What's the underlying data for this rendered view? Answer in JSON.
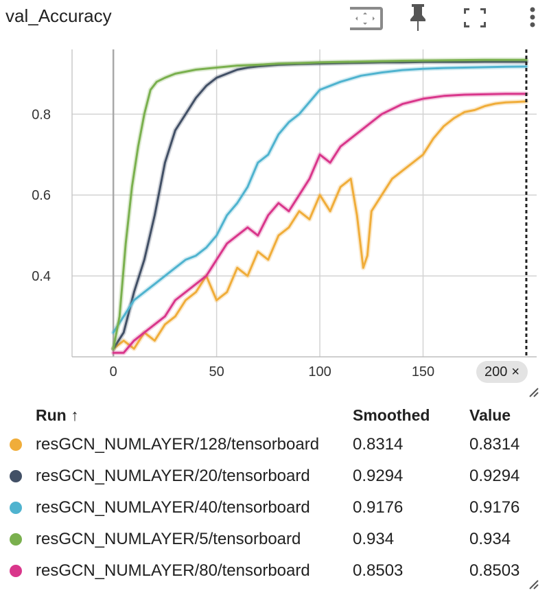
{
  "card": {
    "title": "val_Accuracy",
    "toolbar": {
      "fit_domain": "fit-to-data-icon",
      "pin": "pin-icon",
      "fullscreen": "fullscreen-icon",
      "more": "more-vert-icon"
    },
    "step_badge": {
      "label": "200",
      "close_glyph": "×"
    }
  },
  "table": {
    "headers": {
      "run": "Run ↑",
      "smoothed": "Smoothed",
      "value": "Value"
    },
    "rows": [
      {
        "run": "resGCN_NUMLAYER/128/tensorboard",
        "smoothed": "0.8314",
        "value": "0.8314",
        "color": "#f0ad3a"
      },
      {
        "run": "resGCN_NUMLAYER/20/tensorboard",
        "smoothed": "0.9294",
        "value": "0.9294",
        "color": "#425066"
      },
      {
        "run": "resGCN_NUMLAYER/40/tensorboard",
        "smoothed": "0.9176",
        "value": "0.9176",
        "color": "#4fb3cf"
      },
      {
        "run": "resGCN_NUMLAYER/5/tensorboard",
        "smoothed": "0.934",
        "value": "0.934",
        "color": "#7ab04e"
      },
      {
        "run": "resGCN_NUMLAYER/80/tensorboard",
        "smoothed": "0.8503",
        "value": "0.8503",
        "color": "#d9368b"
      }
    ]
  },
  "chart_data": {
    "type": "line",
    "title": "val_Accuracy",
    "xlabel": "",
    "ylabel": "",
    "xlim": [
      -20,
      205
    ],
    "ylim": [
      0.2,
      0.96
    ],
    "x_ticks": [
      0,
      50,
      100,
      150
    ],
    "y_ticks": [
      0.4,
      0.6,
      0.8
    ],
    "grid": true,
    "step_marker": 200,
    "series": [
      {
        "name": "resGCN_NUMLAYER/128/tensorboard",
        "color": "#f0ad3a",
        "x": [
          0,
          5,
          10,
          15,
          20,
          25,
          30,
          35,
          40,
          45,
          50,
          55,
          60,
          65,
          70,
          75,
          80,
          85,
          90,
          95,
          100,
          105,
          110,
          115,
          118,
          121,
          123,
          125,
          130,
          135,
          140,
          145,
          150,
          155,
          160,
          165,
          170,
          175,
          180,
          185,
          190,
          195,
          200
        ],
        "y": [
          0.22,
          0.24,
          0.22,
          0.26,
          0.24,
          0.28,
          0.3,
          0.34,
          0.36,
          0.4,
          0.34,
          0.36,
          0.42,
          0.4,
          0.46,
          0.44,
          0.5,
          0.52,
          0.56,
          0.54,
          0.6,
          0.56,
          0.62,
          0.64,
          0.55,
          0.42,
          0.45,
          0.56,
          0.6,
          0.64,
          0.66,
          0.68,
          0.7,
          0.74,
          0.77,
          0.79,
          0.805,
          0.81,
          0.82,
          0.826,
          0.829,
          0.83,
          0.8314
        ]
      },
      {
        "name": "resGCN_NUMLAYER/20/tensorboard",
        "color": "#425066",
        "x": [
          0,
          5,
          10,
          15,
          20,
          25,
          30,
          35,
          40,
          45,
          50,
          55,
          60,
          65,
          70,
          80,
          90,
          100,
          110,
          120,
          130,
          140,
          150,
          160,
          170,
          180,
          190,
          200
        ],
        "y": [
          0.22,
          0.26,
          0.36,
          0.44,
          0.55,
          0.68,
          0.76,
          0.8,
          0.84,
          0.87,
          0.89,
          0.9,
          0.91,
          0.915,
          0.918,
          0.922,
          0.924,
          0.925,
          0.926,
          0.927,
          0.928,
          0.928,
          0.929,
          0.929,
          0.929,
          0.9294,
          0.9294,
          0.9294
        ]
      },
      {
        "name": "resGCN_NUMLAYER/40/tensorboard",
        "color": "#4fb3cf",
        "x": [
          0,
          5,
          10,
          15,
          20,
          25,
          30,
          35,
          40,
          45,
          50,
          55,
          60,
          65,
          70,
          75,
          80,
          85,
          90,
          95,
          100,
          110,
          120,
          130,
          140,
          150,
          160,
          170,
          180,
          190,
          200
        ],
        "y": [
          0.26,
          0.3,
          0.34,
          0.36,
          0.38,
          0.4,
          0.42,
          0.44,
          0.45,
          0.47,
          0.5,
          0.55,
          0.58,
          0.62,
          0.68,
          0.7,
          0.75,
          0.78,
          0.8,
          0.83,
          0.86,
          0.88,
          0.895,
          0.903,
          0.909,
          0.912,
          0.914,
          0.915,
          0.916,
          0.917,
          0.9176
        ]
      },
      {
        "name": "resGCN_NUMLAYER/5/tensorboard",
        "color": "#7ab04e",
        "x": [
          0,
          3,
          6,
          9,
          12,
          15,
          18,
          21,
          25,
          30,
          40,
          50,
          60,
          70,
          80,
          90,
          100,
          120,
          140,
          160,
          180,
          200
        ],
        "y": [
          0.22,
          0.3,
          0.48,
          0.62,
          0.72,
          0.8,
          0.86,
          0.88,
          0.89,
          0.9,
          0.91,
          0.915,
          0.92,
          0.922,
          0.925,
          0.926,
          0.928,
          0.93,
          0.932,
          0.933,
          0.934,
          0.934
        ]
      },
      {
        "name": "resGCN_NUMLAYER/80/tensorboard",
        "color": "#d9368b",
        "x": [
          0,
          5,
          10,
          15,
          20,
          25,
          30,
          35,
          40,
          45,
          50,
          55,
          60,
          65,
          70,
          75,
          80,
          85,
          90,
          95,
          100,
          105,
          110,
          115,
          120,
          125,
          130,
          140,
          150,
          160,
          170,
          180,
          190,
          200
        ],
        "y": [
          0.21,
          0.21,
          0.24,
          0.26,
          0.28,
          0.3,
          0.34,
          0.36,
          0.38,
          0.4,
          0.44,
          0.48,
          0.5,
          0.52,
          0.5,
          0.55,
          0.58,
          0.56,
          0.6,
          0.64,
          0.7,
          0.68,
          0.72,
          0.74,
          0.76,
          0.78,
          0.8,
          0.825,
          0.838,
          0.845,
          0.848,
          0.849,
          0.85,
          0.8503
        ]
      }
    ]
  }
}
